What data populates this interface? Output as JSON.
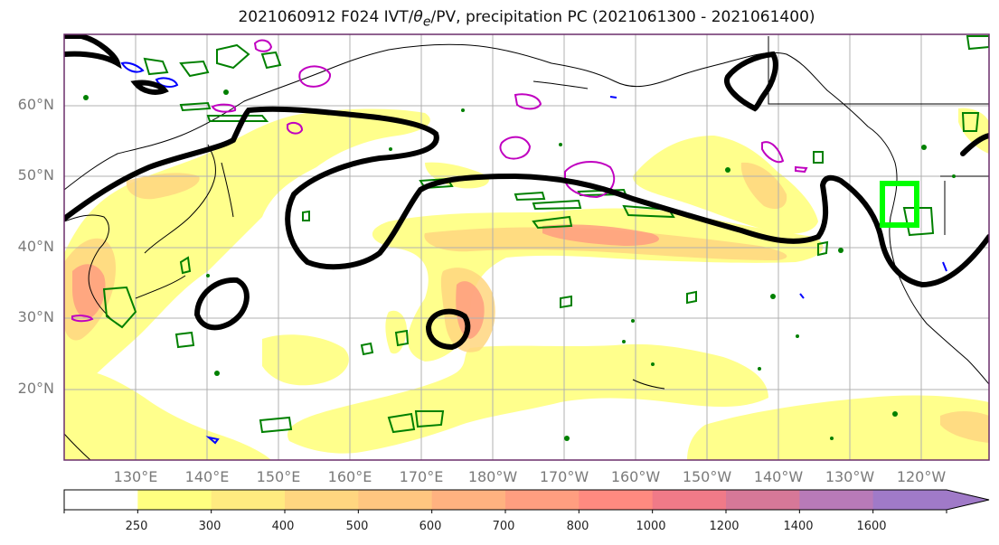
{
  "title": {
    "prefix": "2021060912 F024 IVT/",
    "theta": "θ",
    "theta_sub": "e",
    "suffix": "/PV, precipitation PC (2021061300 - 2021061400)"
  },
  "lat_labels": [
    "60°N",
    "50°N",
    "40°N",
    "30°N",
    "20°N"
  ],
  "lon_labels": [
    "130°E",
    "140°E",
    "150°E",
    "160°E",
    "170°E",
    "180°W",
    "170°W",
    "160°W",
    "150°W",
    "140°W",
    "130°W",
    "120°W"
  ],
  "colorbar": {
    "ticks": [
      "250",
      "300",
      "400",
      "500",
      "600",
      "700",
      "800",
      "1000",
      "1200",
      "1400",
      "1600"
    ],
    "colors": [
      "#ffffff",
      "#ffff80",
      "#ffeb80",
      "#ffd680",
      "#ffc680",
      "#ffb280",
      "#ff9e80",
      "#ff8a80",
      "#f07a88",
      "#d67898",
      "#b87ab8",
      "#a07ac8"
    ]
  },
  "colors": {
    "ivt_contour": "#000000",
    "theta_e_contour": "#008000",
    "pv_contour_magenta": "#c000c0",
    "pv_contour_blue": "#0000ff",
    "highlight_box": "#00ff00"
  }
}
